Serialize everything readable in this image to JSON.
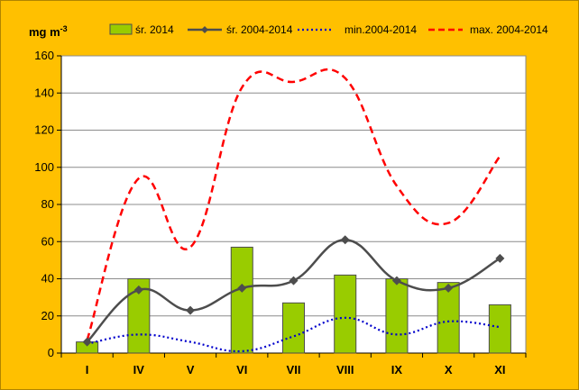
{
  "chart_data": {
    "type": "bar",
    "ylabel": "mg m",
    "ylabel_sup": "-3",
    "categories": [
      "I",
      "IV",
      "V",
      "VI",
      "VII",
      "VIII",
      "IX",
      "X",
      "XI"
    ],
    "ylim": [
      0,
      160
    ],
    "yticks": [
      0,
      20,
      40,
      60,
      80,
      100,
      120,
      140,
      160
    ],
    "grid": true,
    "legend_position": "top",
    "series": [
      {
        "name": "śr. 2014",
        "kind": "bar",
        "color": "#99CC00",
        "values": [
          6,
          40,
          null,
          57,
          27,
          42,
          40,
          38,
          26
        ]
      },
      {
        "name": "śr. 2004-2014",
        "kind": "line-marker",
        "color": "#4D4D4D",
        "values": [
          6,
          34,
          23,
          35,
          39,
          61,
          39,
          35,
          51
        ]
      },
      {
        "name": "min.2004-2014",
        "kind": "dotted-line",
        "color": "#0000CC",
        "values": [
          5,
          10,
          6,
          1,
          9,
          19,
          10,
          17,
          14
        ]
      },
      {
        "name": "max. 2004-2014",
        "kind": "dashed-line",
        "color": "#FF0000",
        "values": [
          7,
          94,
          57,
          143,
          146,
          148,
          90,
          70,
          106
        ]
      }
    ]
  }
}
